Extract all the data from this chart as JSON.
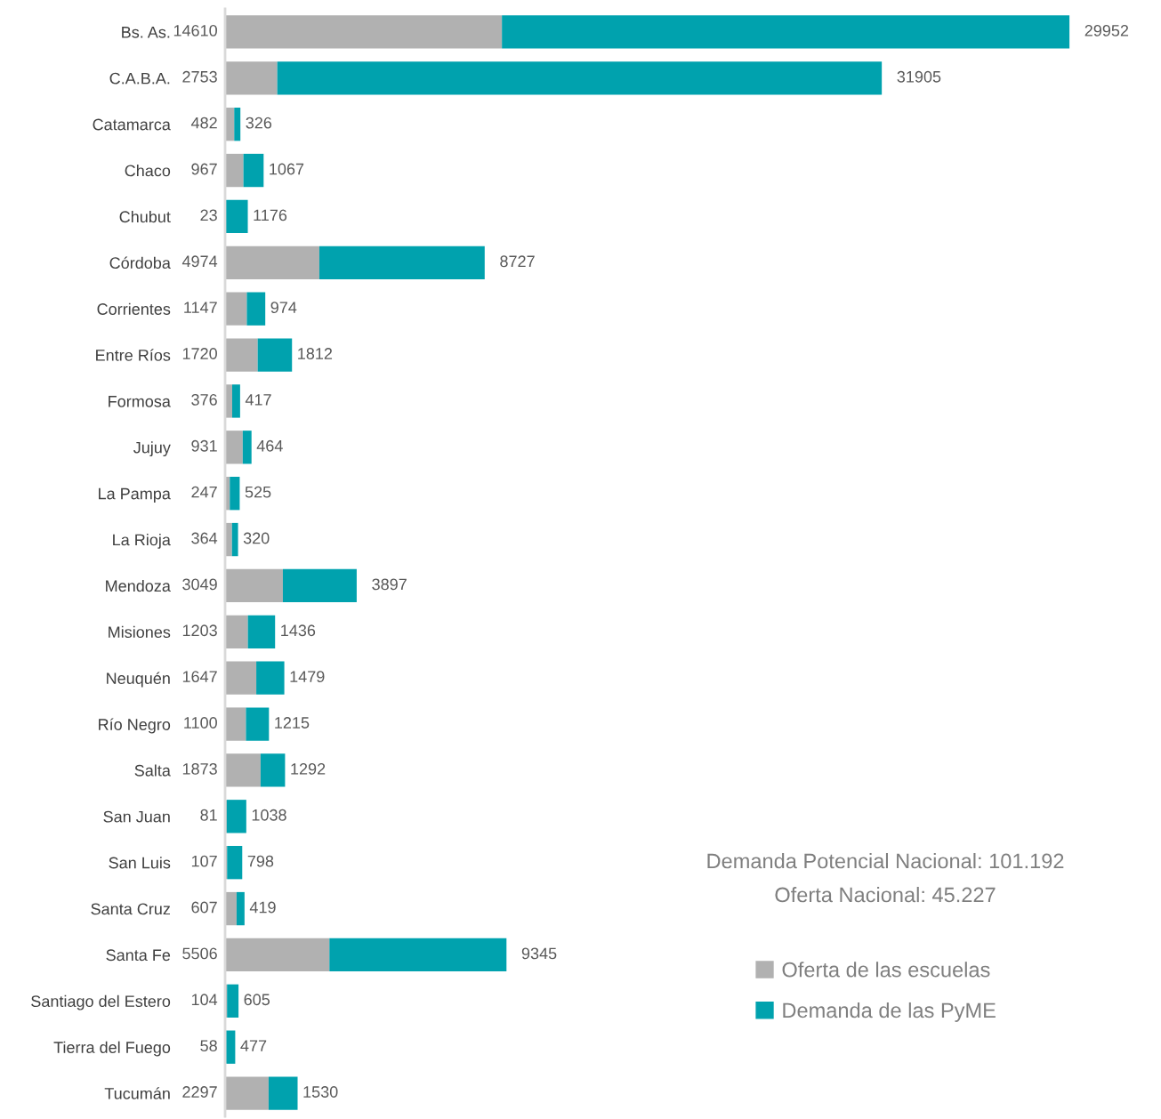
{
  "chart_data": {
    "type": "bar",
    "orientation": "horizontal",
    "stacked": true,
    "data_labels": true,
    "tick_labels": "y",
    "grid": false,
    "legend": "bottom right",
    "categories": [
      "Bs. As.",
      "C.A.B.A.",
      "Catamarca",
      "Chaco",
      "Chubut",
      "Córdoba",
      "Corrientes",
      "Entre Ríos",
      "Formosa",
      "Jujuy",
      "La Pampa",
      "La Rioja",
      "Mendoza",
      "Misiones",
      "Neuquén",
      "Río Negro",
      "Salta",
      "San Juan",
      "San Luis",
      "Santa Cruz",
      "Santa Fe",
      "Santiago del Estero",
      "Tierra del Fuego",
      "Tucumán"
    ],
    "series": [
      {
        "name": "Oferta de las escuelas",
        "color": "#b1b1b1",
        "values": [
          14610,
          2753,
          482,
          967,
          23,
          4974,
          1147,
          1720,
          376,
          931,
          247,
          364,
          3049,
          1203,
          1647,
          1100,
          1873,
          81,
          107,
          607,
          5506,
          104,
          58,
          2297
        ]
      },
      {
        "name": "Demanda de las PyME",
        "color": "#00a2ae",
        "values": [
          29952,
          31905,
          326,
          1067,
          1176,
          8727,
          974,
          1812,
          417,
          464,
          525,
          320,
          3897,
          1436,
          1479,
          1215,
          1292,
          1038,
          798,
          419,
          9345,
          605,
          477,
          1530
        ]
      }
    ],
    "annotations": [
      "Demanda Potencial Nacional: 101.192",
      "Oferta Nacional: 45.227"
    ]
  }
}
